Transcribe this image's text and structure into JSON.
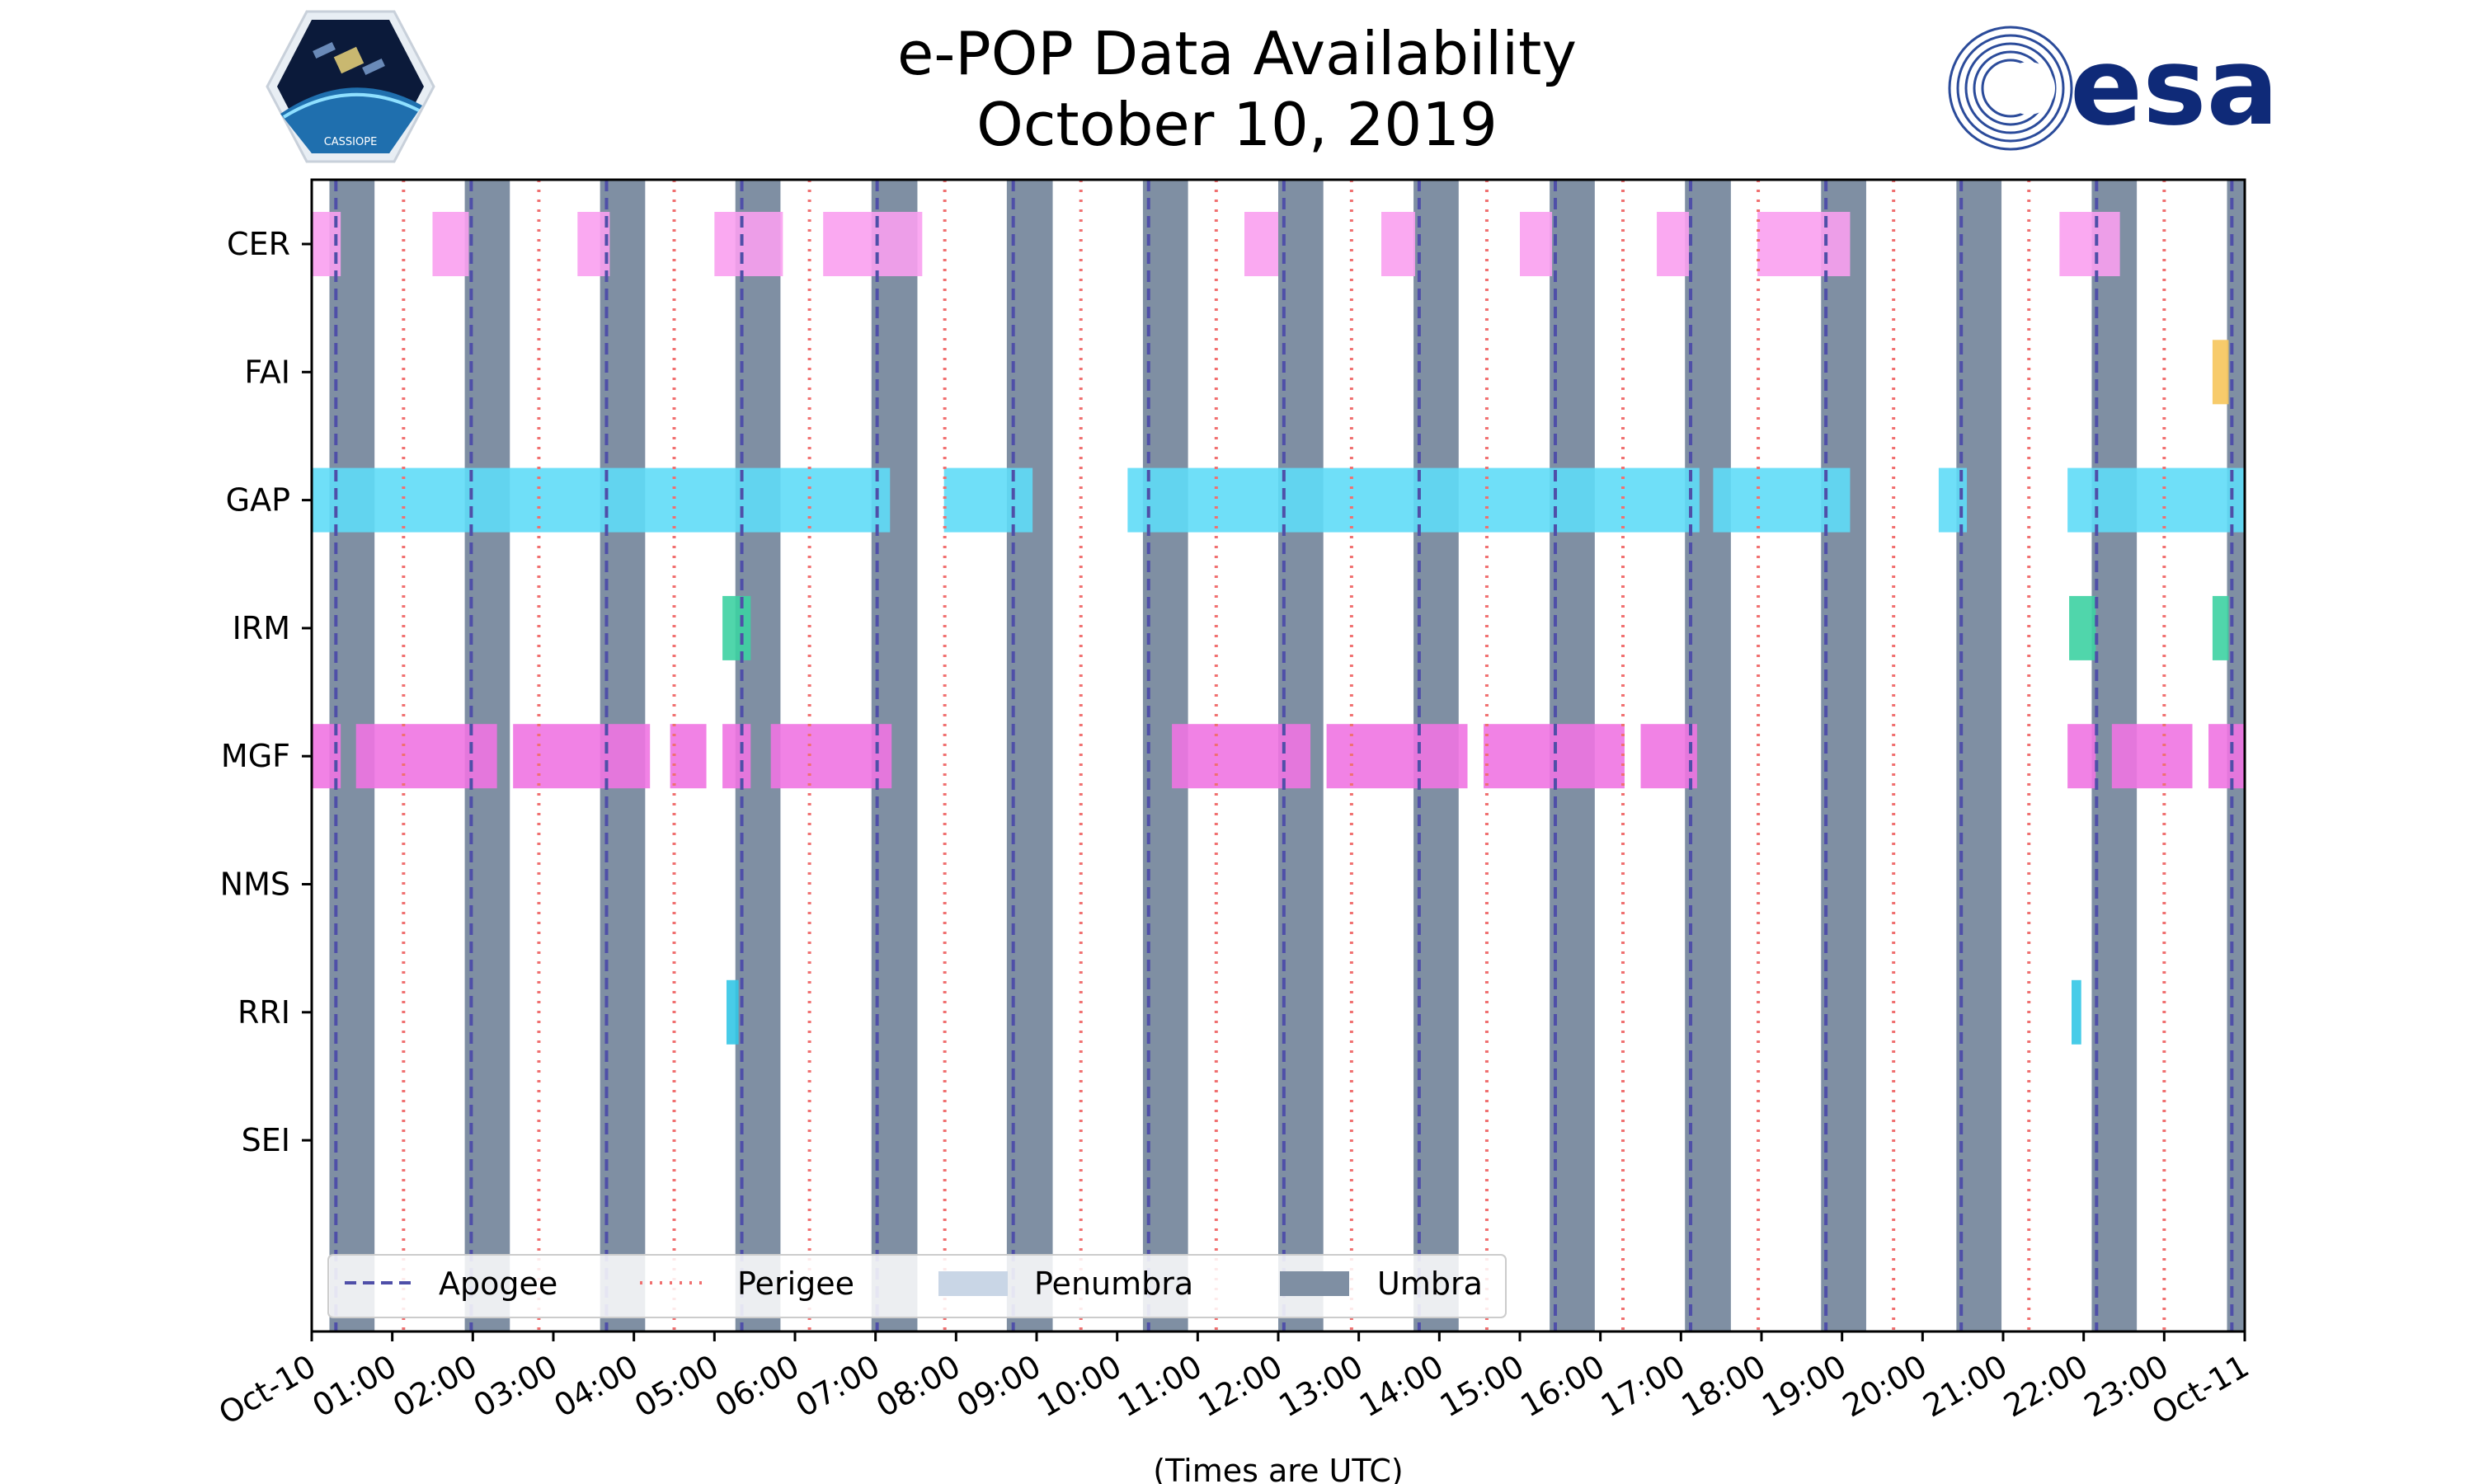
{
  "header": {
    "title_line1": "e-POP Data Availability",
    "title_line2": "October 10, 2019"
  },
  "logos": {
    "left": "cassiope-mission-logo",
    "left_caption": "CASSIOPE",
    "right": "esa-logo",
    "right_text": "esa"
  },
  "colors": {
    "CER": "#f9a0f0",
    "FAI": "#f6c55b",
    "GAP": "#5fdcf7",
    "IRM": "#3dd1a2",
    "MGF": "#ef74e2",
    "NMS": "#999999",
    "RRI": "#34c6e6",
    "SEI": "#999999",
    "umbra": "#7f8fa3",
    "penumbra": "#c9d6e6",
    "apogee": "#4f4fa8",
    "perigee": "#f07070"
  },
  "chart_data": {
    "type": "timeline",
    "title": "e-POP Data Availability October 10, 2019",
    "xlabel": "(Times are UTC)",
    "xlim": [
      0,
      24
    ],
    "x_tick_labels": [
      "Oct-10",
      "01:00",
      "02:00",
      "03:00",
      "04:00",
      "05:00",
      "06:00",
      "07:00",
      "08:00",
      "09:00",
      "10:00",
      "11:00",
      "12:00",
      "13:00",
      "14:00",
      "15:00",
      "16:00",
      "17:00",
      "18:00",
      "19:00",
      "20:00",
      "21:00",
      "22:00",
      "23:00",
      "Oct-11"
    ],
    "instruments": [
      "CER",
      "FAI",
      "GAP",
      "IRM",
      "MGF",
      "NMS",
      "RRI",
      "SEI"
    ],
    "availability": {
      "CER": [
        [
          0.0,
          0.36
        ],
        [
          1.5,
          1.95
        ],
        [
          3.3,
          3.7
        ],
        [
          5.0,
          5.85
        ],
        [
          6.35,
          7.58
        ],
        [
          11.58,
          12.0
        ],
        [
          13.28,
          13.7
        ],
        [
          15.0,
          15.4
        ],
        [
          16.7,
          17.1
        ],
        [
          17.95,
          19.1
        ],
        [
          21.7,
          22.45
        ]
      ],
      "FAI": [
        [
          23.6,
          23.8
        ]
      ],
      "GAP": [
        [
          0.0,
          7.18
        ],
        [
          7.85,
          8.95
        ],
        [
          10.13,
          17.23
        ],
        [
          17.4,
          19.1
        ],
        [
          20.2,
          20.55
        ],
        [
          21.8,
          24.0
        ]
      ],
      "IRM": [
        [
          5.1,
          5.45
        ],
        [
          21.82,
          22.15
        ],
        [
          23.6,
          23.8
        ]
      ],
      "MGF": [
        [
          0.0,
          0.36
        ],
        [
          0.55,
          2.3
        ],
        [
          2.5,
          4.2
        ],
        [
          4.45,
          4.9
        ],
        [
          5.1,
          5.45
        ],
        [
          5.7,
          7.2
        ],
        [
          10.68,
          12.4
        ],
        [
          12.6,
          14.35
        ],
        [
          14.55,
          16.3
        ],
        [
          16.5,
          17.2
        ],
        [
          21.8,
          22.15
        ],
        [
          22.35,
          23.35
        ],
        [
          23.55,
          24.0
        ]
      ],
      "NMS": [],
      "RRI": [
        [
          5.15,
          5.3
        ],
        [
          21.85,
          21.97
        ]
      ],
      "SEI": []
    },
    "umbra": [
      [
        0.22,
        0.78
      ],
      [
        1.9,
        2.46
      ],
      [
        3.58,
        4.14
      ],
      [
        5.26,
        5.82
      ],
      [
        6.95,
        7.52
      ],
      [
        8.63,
        9.2
      ],
      [
        10.32,
        10.88
      ],
      [
        12.0,
        12.56
      ],
      [
        13.68,
        14.24
      ],
      [
        15.37,
        15.93
      ],
      [
        17.05,
        17.62
      ],
      [
        18.74,
        19.3
      ],
      [
        20.42,
        20.98
      ],
      [
        22.1,
        22.66
      ],
      [
        23.78,
        24.0
      ]
    ],
    "penumbra": [],
    "apogee": [
      0.3,
      1.98,
      3.66,
      5.34,
      7.02,
      8.71,
      10.39,
      12.07,
      13.75,
      15.44,
      17.12,
      18.8,
      20.48,
      22.16,
      23.84
    ],
    "perigee": [
      1.14,
      2.82,
      4.5,
      6.18,
      7.86,
      9.55,
      11.23,
      12.91,
      14.59,
      16.28,
      17.96,
      19.64,
      21.32,
      23.0
    ],
    "legend": [
      "Apogee",
      "Perigee",
      "Penumbra",
      "Umbra"
    ],
    "legend_location": "lower-left"
  }
}
